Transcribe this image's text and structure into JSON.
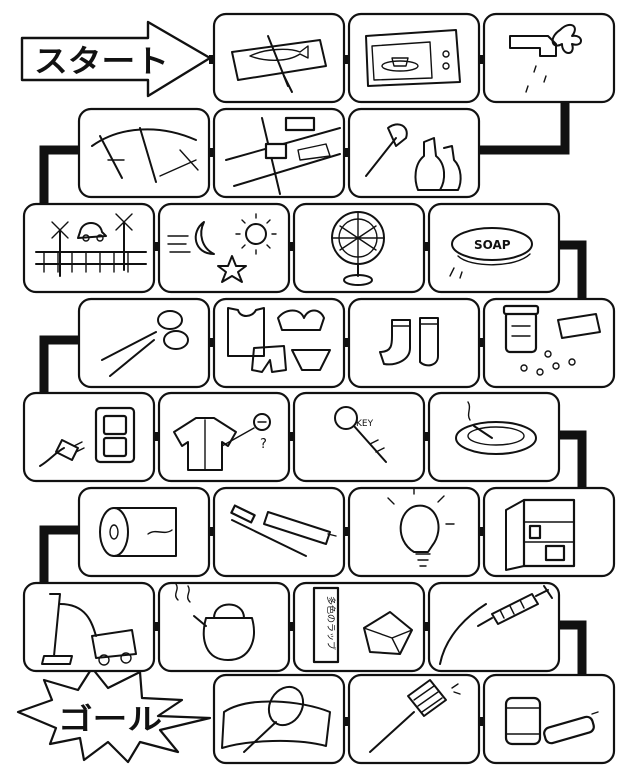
{
  "start_label": "スタート",
  "goal_label": "ゴール",
  "tile_texts": {
    "soap": "SOAP",
    "key": "KEY",
    "box_label": "多色のラッブ"
  },
  "colors": {
    "ink": "#111111",
    "paper": "#ffffff"
  },
  "rows": [
    {
      "items": [
        "cutting-board-knife-fish",
        "microwave",
        "faucet-dripping"
      ]
    },
    {
      "items": [
        "road-bridge",
        "road-traffic-signs",
        "opener-and-bottles"
      ]
    },
    {
      "items": [
        "railway-crossing",
        "moon-sun-star",
        "electric-fan",
        "soap-bar"
      ]
    },
    {
      "items": [
        "scissors",
        "underwear-laundry",
        "socks",
        "pill-bottle-and-pills"
      ]
    },
    {
      "items": [
        "plug-and-outlet",
        "shirt-and-button",
        "key",
        "ashtray-cigarette"
      ]
    },
    {
      "items": [
        "toilet-paper-roll",
        "toothbrush-and-paste",
        "light-bulb",
        "refrigerator"
      ]
    },
    {
      "items": [
        "vacuum-cleaner",
        "kettle",
        "box-and-paper-package",
        "syringe"
      ]
    },
    {
      "items": [
        "badminton-racket-towel",
        "fly-swatter",
        "batteries"
      ]
    }
  ]
}
